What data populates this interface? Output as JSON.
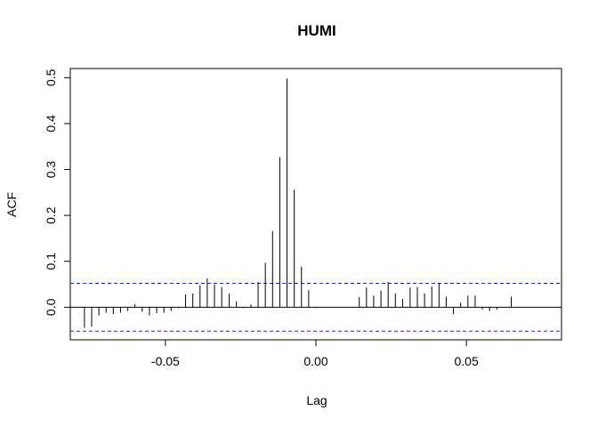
{
  "chart_data": {
    "type": "bar",
    "subtype": "cross-correlation",
    "title": "HUMI",
    "xlabel": "Lag",
    "ylabel": "ACF",
    "xlim": [
      -0.0816,
      0.0816
    ],
    "ylim": [
      -0.071,
      0.52
    ],
    "xticks": [
      -0.05,
      0.0,
      0.05
    ],
    "xtick_labels": [
      "-0.05",
      "0.00",
      "0.05"
    ],
    "yticks": [
      0.0,
      0.1,
      0.2,
      0.3,
      0.4,
      0.5
    ],
    "ytick_labels": [
      "0.0",
      "0.1",
      "0.2",
      "0.3",
      "0.4",
      "0.5"
    ],
    "confidence_band": [
      -0.052,
      0.052
    ],
    "grid": false,
    "colors": {
      "bars": "#000000",
      "confidence": "#2222cc",
      "zero_line": "#000000"
    },
    "series": [
      {
        "x": [
          -0.0769,
          -0.0745,
          -0.0721,
          -0.0697,
          -0.0673,
          -0.0649,
          -0.0625,
          -0.0601,
          -0.0577,
          -0.0553,
          -0.0529,
          -0.0505,
          -0.0481,
          -0.0457,
          -0.0433,
          -0.0409,
          -0.0385,
          -0.0361,
          -0.0337,
          -0.0313,
          -0.0288,
          -0.0264,
          -0.024,
          -0.0216,
          -0.0192,
          -0.0168,
          -0.0144,
          -0.012,
          -0.0096,
          -0.0072,
          -0.0048,
          -0.0024,
          0.0,
          0.0024,
          0.0048,
          0.0072,
          0.0096,
          0.012,
          0.0144,
          0.0168,
          0.0192,
          0.0216,
          0.024,
          0.0264,
          0.0288,
          0.0313,
          0.0337,
          0.0361,
          0.0385,
          0.0409,
          0.0433,
          0.0457,
          0.0481,
          0.0505,
          0.0529,
          0.0553,
          0.0577,
          0.0601,
          0.0625,
          0.0649,
          0.0673,
          0.0697,
          0.0721,
          0.0745,
          0.0769
        ],
        "values": [
          -0.045,
          -0.042,
          -0.018,
          -0.012,
          -0.015,
          -0.012,
          -0.008,
          0.007,
          -0.01,
          -0.018,
          -0.013,
          -0.012,
          -0.008,
          -0.002,
          0.028,
          0.03,
          0.048,
          0.063,
          0.05,
          0.044,
          0.03,
          0.013,
          -0.002,
          0.006,
          0.055,
          0.097,
          0.166,
          0.327,
          0.498,
          0.256,
          0.088,
          0.037,
          -0.002,
          0.0,
          0.0,
          0.0,
          0.0,
          0.0,
          0.022,
          0.043,
          0.025,
          0.036,
          0.055,
          0.03,
          0.018,
          0.043,
          0.044,
          0.03,
          0.045,
          0.053,
          0.023,
          -0.015,
          0.01,
          0.025,
          0.025,
          -0.005,
          -0.008,
          -0.005,
          0.0,
          0.023,
          0.0,
          0.0,
          0.0,
          0.0,
          0.0
        ]
      }
    ]
  }
}
